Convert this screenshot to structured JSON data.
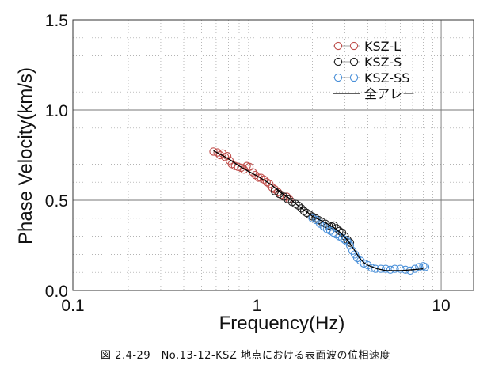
{
  "chart_data": {
    "type": "scatter",
    "xscale": "log",
    "xlim": [
      0.1,
      15
    ],
    "ylim": [
      0.0,
      1.5
    ],
    "xlabel": "Frequency(Hz)",
    "ylabel": "Phase Velocity(km/s)",
    "x_ticks": [
      {
        "value": 0.1,
        "label": "0.1"
      },
      {
        "value": 1,
        "label": "1"
      },
      {
        "value": 10,
        "label": "10"
      }
    ],
    "y_ticks": [
      {
        "value": 0.0,
        "label": "0.0"
      },
      {
        "value": 0.5,
        "label": "0.5"
      },
      {
        "value": 1.0,
        "label": "1.0"
      },
      {
        "value": 1.5,
        "label": "1.5"
      }
    ],
    "grid": true,
    "legend_position": "top-right",
    "series": [
      {
        "name": "KSZ-L",
        "marker": "circle",
        "color": "#c0504d",
        "points": [
          [
            0.58,
            0.77
          ],
          [
            0.61,
            0.765
          ],
          [
            0.63,
            0.75
          ],
          [
            0.65,
            0.76
          ],
          [
            0.67,
            0.74
          ],
          [
            0.69,
            0.745
          ],
          [
            0.71,
            0.72
          ],
          [
            0.73,
            0.7
          ],
          [
            0.76,
            0.69
          ],
          [
            0.79,
            0.685
          ],
          [
            0.82,
            0.68
          ],
          [
            0.85,
            0.67
          ],
          [
            0.88,
            0.69
          ],
          [
            0.91,
            0.685
          ],
          [
            0.95,
            0.655
          ],
          [
            0.98,
            0.64
          ],
          [
            1.02,
            0.625
          ],
          [
            1.05,
            0.625
          ],
          [
            1.09,
            0.615
          ],
          [
            1.13,
            0.6
          ],
          [
            1.17,
            0.59
          ],
          [
            1.21,
            0.57
          ],
          [
            1.25,
            0.56
          ],
          [
            1.3,
            0.545
          ],
          [
            1.35,
            0.53
          ],
          [
            1.4,
            0.52
          ],
          [
            1.45,
            0.52
          ],
          [
            1.5,
            0.505
          ]
        ]
      },
      {
        "name": "KSZ-S",
        "marker": "circle",
        "color": "#222222",
        "points": [
          [
            1.25,
            0.55
          ],
          [
            1.32,
            0.535
          ],
          [
            1.4,
            0.52
          ],
          [
            1.47,
            0.505
          ],
          [
            1.55,
            0.49
          ],
          [
            1.62,
            0.48
          ],
          [
            1.68,
            0.47
          ],
          [
            1.74,
            0.455
          ],
          [
            1.8,
            0.44
          ],
          [
            1.86,
            0.43
          ],
          [
            1.93,
            0.42
          ],
          [
            2.0,
            0.41
          ],
          [
            2.08,
            0.4
          ],
          [
            2.16,
            0.39
          ],
          [
            2.25,
            0.38
          ],
          [
            2.35,
            0.37
          ],
          [
            2.45,
            0.36
          ],
          [
            2.55,
            0.355
          ],
          [
            2.62,
            0.36
          ],
          [
            2.7,
            0.345
          ],
          [
            2.8,
            0.33
          ],
          [
            2.9,
            0.32
          ],
          [
            3.0,
            0.3
          ],
          [
            3.1,
            0.28
          ],
          [
            3.2,
            0.265
          ]
        ]
      },
      {
        "name": "KSZ-SS",
        "marker": "circle",
        "color": "#4a90d9",
        "points": [
          [
            2.0,
            0.4
          ],
          [
            2.1,
            0.39
          ],
          [
            2.2,
            0.37
          ],
          [
            2.3,
            0.355
          ],
          [
            2.4,
            0.34
          ],
          [
            2.5,
            0.33
          ],
          [
            2.6,
            0.32
          ],
          [
            2.7,
            0.31
          ],
          [
            2.8,
            0.3
          ],
          [
            2.9,
            0.29
          ],
          [
            3.0,
            0.28
          ],
          [
            3.1,
            0.27
          ],
          [
            3.2,
            0.25
          ],
          [
            3.3,
            0.22
          ],
          [
            3.4,
            0.2
          ],
          [
            3.5,
            0.18
          ],
          [
            3.65,
            0.165
          ],
          [
            3.8,
            0.15
          ],
          [
            4.0,
            0.14
          ],
          [
            4.2,
            0.125
          ],
          [
            4.4,
            0.12
          ],
          [
            4.7,
            0.12
          ],
          [
            5.0,
            0.12
          ],
          [
            5.3,
            0.115
          ],
          [
            5.6,
            0.12
          ],
          [
            6.0,
            0.12
          ],
          [
            6.4,
            0.115
          ],
          [
            6.8,
            0.11
          ],
          [
            7.2,
            0.12
          ],
          [
            7.6,
            0.13
          ],
          [
            8.0,
            0.135
          ],
          [
            8.2,
            0.13
          ]
        ]
      },
      {
        "name": "全アレー",
        "marker": "line",
        "color": "#000000",
        "points": [
          [
            0.58,
            0.775
          ],
          [
            0.7,
            0.73
          ],
          [
            0.8,
            0.69
          ],
          [
            0.9,
            0.66
          ],
          [
            1.0,
            0.635
          ],
          [
            1.1,
            0.61
          ],
          [
            1.2,
            0.585
          ],
          [
            1.3,
            0.555
          ],
          [
            1.4,
            0.53
          ],
          [
            1.5,
            0.51
          ],
          [
            1.6,
            0.485
          ],
          [
            1.7,
            0.465
          ],
          [
            1.8,
            0.445
          ],
          [
            1.9,
            0.43
          ],
          [
            2.0,
            0.41
          ],
          [
            2.2,
            0.39
          ],
          [
            2.4,
            0.37
          ],
          [
            2.6,
            0.35
          ],
          [
            2.8,
            0.325
          ],
          [
            3.0,
            0.295
          ],
          [
            3.2,
            0.26
          ],
          [
            3.4,
            0.22
          ],
          [
            3.6,
            0.18
          ],
          [
            3.8,
            0.155
          ],
          [
            4.0,
            0.14
          ],
          [
            4.5,
            0.12
          ],
          [
            5.0,
            0.11
          ],
          [
            6.0,
            0.11
          ],
          [
            7.0,
            0.115
          ],
          [
            8.0,
            0.12
          ]
        ]
      }
    ]
  },
  "caption": "図 2.4-29　No.13-12-KSZ 地点における表面波の位相速度"
}
